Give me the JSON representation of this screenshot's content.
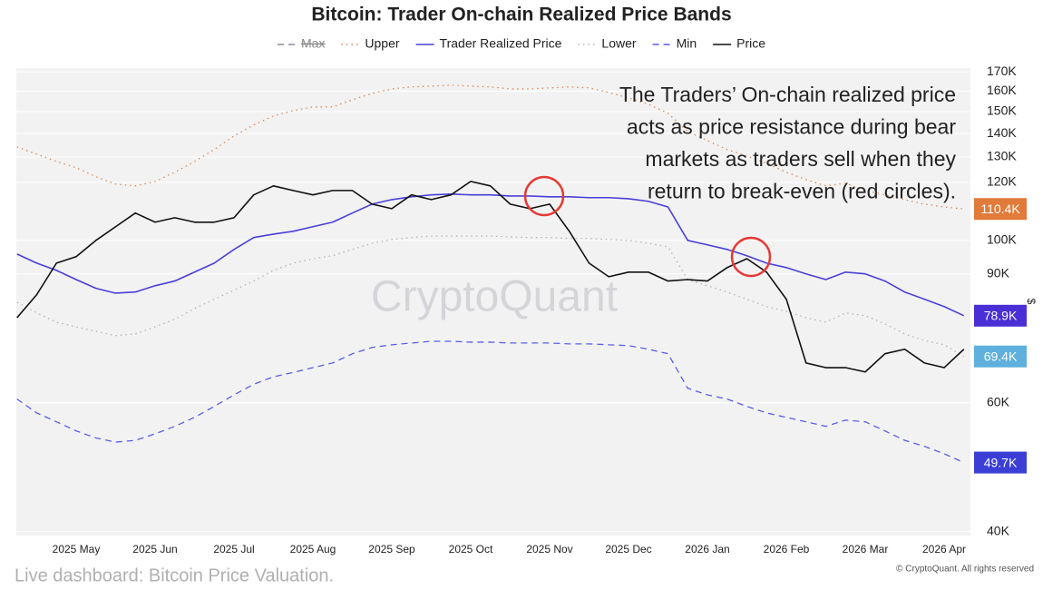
{
  "chart_data": {
    "type": "line",
    "title": "Bitcoin: Trader On-chain Realized Price Bands",
    "ylabel": "$",
    "log_scale": true,
    "grid": true,
    "watermark": "CryptoQuant",
    "annotation": [
      "The Traders’ On-chain realized price",
      "acts as price resistance during bear",
      "markets as traders sell when they",
      "return to break-even (red circles)."
    ],
    "footer": "Live dashboard: Bitcoin Price Valuation.",
    "copyright": "© CryptoQuant. All rights reserved",
    "categories": [
      null,
      null,
      null,
      "2025 May",
      null,
      null,
      null,
      "2025 Jun",
      null,
      null,
      null,
      "2025 Jul",
      null,
      null,
      null,
      "2025 Aug",
      null,
      null,
      null,
      "2025 Sep",
      null,
      null,
      null,
      "2025 Oct",
      null,
      null,
      null,
      "2025 Nov",
      null,
      null,
      null,
      "2025 Dec",
      null,
      null,
      null,
      "2026 Jan",
      null,
      null,
      null,
      "2026 Feb",
      null,
      null,
      null,
      "2026 Mar",
      null,
      null,
      null,
      "2026 Apr",
      null
    ],
    "ylim": [
      39500,
      172000
    ],
    "yticks": [
      {
        "value": 40000,
        "label": "40K"
      },
      {
        "value": 60000,
        "label": "60K"
      },
      {
        "value": 90000,
        "label": "90K"
      },
      {
        "value": 100000,
        "label": "100K"
      },
      {
        "value": 120000,
        "label": "120K"
      },
      {
        "value": 130000,
        "label": "130K"
      },
      {
        "value": 140000,
        "label": "140K"
      },
      {
        "value": 150000,
        "label": "150K"
      },
      {
        "value": 160000,
        "label": "160K"
      },
      {
        "value": 170000,
        "label": "170K"
      }
    ],
    "series": [
      {
        "name": "Max",
        "color": "#8a8a9a",
        "dash": "dashed",
        "hidden": true
      },
      {
        "name": "Upper",
        "color": "#d98a5a",
        "dash": "dotted",
        "end_label": "110.4K",
        "label_color": "#e07b39",
        "values": [
          134200,
          131200,
          128200,
          125700,
          122200,
          119400,
          118700,
          120400,
          123900,
          128200,
          133100,
          138900,
          143800,
          147900,
          150500,
          152200,
          152200,
          155700,
          158800,
          161100,
          162100,
          162500,
          163000,
          162500,
          162100,
          161100,
          161100,
          161600,
          162100,
          161600,
          159300,
          156600,
          153500,
          149200,
          140900,
          136900,
          133100,
          130400,
          127500,
          123900,
          121100,
          118700,
          119700,
          117000,
          115400,
          113700,
          112100,
          111100,
          110400
        ]
      },
      {
        "name": "Trader Realized Price",
        "color": "#4a3fd8",
        "dash": "solid",
        "end_label": "78.9K",
        "label_color": "#4b2fd6",
        "values": [
          95800,
          93100,
          91000,
          88400,
          86000,
          84700,
          85000,
          86700,
          88000,
          90500,
          93100,
          97200,
          100900,
          102000,
          102900,
          104400,
          105900,
          109000,
          112100,
          113700,
          114700,
          115400,
          115700,
          115400,
          115400,
          115000,
          115000,
          114700,
          114700,
          114400,
          114400,
          114000,
          113100,
          111100,
          100000,
          98600,
          97200,
          95300,
          93100,
          91800,
          90000,
          88400,
          90500,
          90000,
          88000,
          85000,
          83100,
          81200,
          78900
        ]
      },
      {
        "name": "Lower",
        "color": "#b4b4b4",
        "dash": "dotted",
        "end_label": "69.4K",
        "label_color": "#5fb0dc",
        "values": [
          82300,
          79600,
          77300,
          76200,
          75100,
          74100,
          74500,
          76200,
          78000,
          80700,
          83100,
          85500,
          88000,
          91000,
          93100,
          94400,
          95300,
          97200,
          99100,
          100300,
          100900,
          101400,
          101400,
          101400,
          101400,
          101100,
          100900,
          100900,
          100600,
          100600,
          100300,
          100000,
          99100,
          98000,
          88400,
          86700,
          85000,
          83100,
          81200,
          80000,
          78400,
          77300,
          79600,
          78900,
          76900,
          74500,
          73000,
          72000,
          69400
        ]
      },
      {
        "name": "Min",
        "color": "#5a5ee6",
        "dash": "dashed",
        "end_label": "49.7K",
        "label_color": "#3b3fd6",
        "values": [
          60700,
          58100,
          56500,
          54900,
          53700,
          53000,
          53300,
          54400,
          55700,
          57300,
          59300,
          61500,
          63600,
          65100,
          66000,
          67000,
          68000,
          70000,
          71400,
          72000,
          72400,
          72800,
          72800,
          72600,
          72600,
          72400,
          72400,
          72400,
          72200,
          72200,
          72000,
          71800,
          71000,
          70000,
          62800,
          61500,
          60700,
          59300,
          58100,
          57300,
          56500,
          55700,
          56800,
          56500,
          54900,
          53300,
          52300,
          51100,
          49700
        ]
      },
      {
        "name": "Price",
        "color": "#111111",
        "dash": "solid",
        "values": [
          78400,
          84300,
          93100,
          95000,
          100000,
          104400,
          109000,
          105900,
          107400,
          105900,
          105900,
          107400,
          115400,
          118700,
          117000,
          115400,
          117000,
          117000,
          112100,
          110500,
          115400,
          113700,
          115400,
          120400,
          118700,
          112100,
          110500,
          112100,
          102900,
          93100,
          89200,
          90500,
          90500,
          88000,
          88400,
          88000,
          91800,
          94400,
          90500,
          83100,
          68000,
          67000,
          67000,
          66100,
          70000,
          71000,
          68000,
          67000,
          71000
        ]
      }
    ]
  }
}
